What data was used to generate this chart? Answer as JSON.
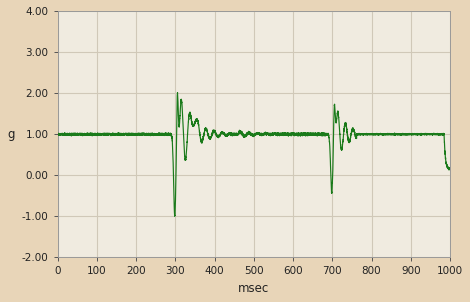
{
  "title": "",
  "xlabel": "msec",
  "ylabel": "g",
  "xlim": [
    0,
    1000
  ],
  "ylim": [
    -2.0,
    4.0
  ],
  "yticks": [
    -2.0,
    -1.0,
    0.0,
    1.0,
    2.0,
    3.0,
    4.0
  ],
  "xticks": [
    0,
    100,
    200,
    300,
    400,
    500,
    600,
    700,
    800,
    900,
    1000
  ],
  "line_color": "#1a7a1a",
  "background_color": "#e8d5b8",
  "plot_bg_color": "#f0ebe0",
  "grid_color": "#d0c8b8",
  "baseline": 1.0
}
